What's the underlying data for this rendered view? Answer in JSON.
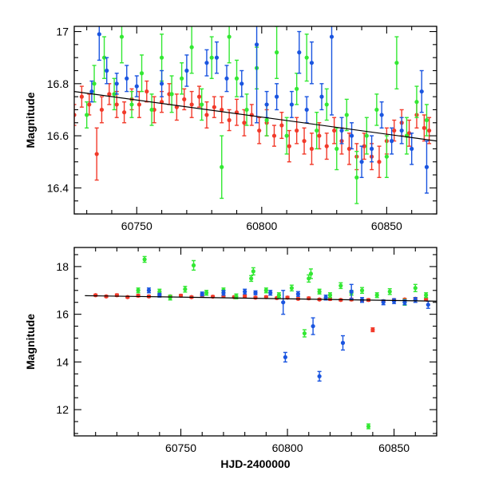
{
  "colors": {
    "red": "#f23a2a",
    "green": "#33e833",
    "blue": "#1a55e0",
    "frame": "#000000",
    "trend": "#000000"
  },
  "chart_data": [
    {
      "type": "scatter",
      "panel": "top",
      "title": "",
      "xlabel": "",
      "ylabel": "Magnitude",
      "xlim": [
        60725,
        60870
      ],
      "ylim": [
        17.02,
        16.3
      ],
      "y_inverted": true,
      "x_ticks": [
        60750,
        60800,
        60850
      ],
      "y_ticks": [
        16.4,
        16.6,
        16.8,
        17
      ],
      "y_tick_labels": [
        "16.4",
        "16.6",
        "16.8",
        "17"
      ],
      "error_bars": true,
      "series": [
        {
          "color_key": "red",
          "points": [
            [
              60725,
              16.68
            ],
            [
              60728,
              16.75
            ],
            [
              60731,
              16.72
            ],
            [
              60734,
              16.53
            ],
            [
              60736,
              16.7
            ],
            [
              60739,
              16.76
            ],
            [
              60742,
              16.72
            ],
            [
              60745,
              16.69
            ],
            [
              60748,
              16.74
            ],
            [
              60751,
              16.72
            ],
            [
              60754,
              16.77
            ],
            [
              60757,
              16.7
            ],
            [
              60760,
              16.73
            ],
            [
              60763,
              16.76
            ],
            [
              60766,
              16.71
            ],
            [
              60769,
              16.74
            ],
            [
              60772,
              16.72
            ],
            [
              60775,
              16.75
            ],
            [
              60778,
              16.68
            ],
            [
              60781,
              16.71
            ],
            [
              60784,
              16.7
            ],
            [
              60787,
              16.66
            ],
            [
              60790,
              16.69
            ],
            [
              60793,
              16.65
            ],
            [
              60796,
              16.68
            ],
            [
              60799,
              16.62
            ],
            [
              60802,
              16.65
            ],
            [
              60805,
              16.6
            ],
            [
              60808,
              16.64
            ],
            [
              60811,
              16.56
            ],
            [
              60814,
              16.62
            ],
            [
              60817,
              16.58
            ],
            [
              60820,
              16.55
            ],
            [
              60823,
              16.6
            ],
            [
              60826,
              16.56
            ],
            [
              60829,
              16.62
            ],
            [
              60832,
              16.58
            ],
            [
              60835,
              16.55
            ],
            [
              60838,
              16.52
            ],
            [
              60841,
              16.56
            ],
            [
              60844,
              16.52
            ],
            [
              60847,
              16.5
            ],
            [
              60850,
              16.58
            ],
            [
              60853,
              16.62
            ],
            [
              60856,
              16.65
            ],
            [
              60859,
              16.61
            ],
            [
              60862,
              16.68
            ],
            [
              60865,
              16.63
            ],
            [
              60867,
              16.62
            ]
          ],
          "errors": [
            0.04,
            0.04,
            0.04,
            0.1,
            0.05,
            0.04,
            0.05,
            0.04,
            0.04,
            0.05,
            0.04,
            0.05,
            0.04,
            0.04,
            0.05,
            0.04,
            0.05,
            0.04,
            0.05,
            0.04,
            0.05,
            0.04,
            0.05,
            0.05,
            0.04,
            0.05,
            0.05,
            0.04,
            0.05,
            0.06,
            0.05,
            0.05,
            0.06,
            0.05,
            0.05,
            0.05,
            0.05,
            0.06,
            0.05,
            0.05,
            0.05,
            0.06,
            0.05,
            0.04,
            0.05,
            0.05,
            0.05,
            0.05,
            0.05
          ]
        },
        {
          "color_key": "green",
          "points": [
            [
              60730,
              16.68
            ],
            [
              60733,
              16.8
            ],
            [
              60737,
              16.9
            ],
            [
              60741,
              16.76
            ],
            [
              60744,
              16.98
            ],
            [
              60748,
              16.72
            ],
            [
              60752,
              16.84
            ],
            [
              60756,
              16.7
            ],
            [
              60760,
              16.9
            ],
            [
              60764,
              16.76
            ],
            [
              60768,
              16.82
            ],
            [
              60772,
              16.94
            ],
            [
              60776,
              16.72
            ],
            [
              60780,
              16.9
            ],
            [
              60784,
              16.48
            ],
            [
              60787,
              16.98
            ],
            [
              60790,
              16.82
            ],
            [
              60794,
              16.7
            ],
            [
              60798,
              16.86
            ],
            [
              60802,
              16.66
            ],
            [
              60806,
              16.92
            ],
            [
              60810,
              16.6
            ],
            [
              60814,
              16.78
            ],
            [
              60818,
              16.9
            ],
            [
              60822,
              16.62
            ],
            [
              60826,
              16.72
            ],
            [
              60830,
              16.55
            ],
            [
              60834,
              16.68
            ],
            [
              60838,
              16.44
            ],
            [
              60842,
              16.6
            ],
            [
              60846,
              16.7
            ],
            [
              60850,
              16.52
            ],
            [
              60854,
              16.88
            ],
            [
              60858,
              16.6
            ],
            [
              60862,
              16.73
            ],
            [
              60866,
              16.66
            ]
          ],
          "errors": [
            0.05,
            0.07,
            0.08,
            0.06,
            0.1,
            0.05,
            0.07,
            0.06,
            0.09,
            0.07,
            0.06,
            0.1,
            0.06,
            0.08,
            0.12,
            0.1,
            0.07,
            0.06,
            0.08,
            0.06,
            0.1,
            0.07,
            0.06,
            0.09,
            0.07,
            0.06,
            0.08,
            0.06,
            0.1,
            0.07,
            0.06,
            0.08,
            0.1,
            0.07,
            0.06,
            0.06
          ]
        },
        {
          "color_key": "blue",
          "points": [
            [
              60732,
              16.77
            ],
            [
              60735,
              16.99
            ],
            [
              60738,
              16.85
            ],
            [
              60742,
              16.8
            ],
            [
              60746,
              16.82
            ],
            [
              60750,
              16.79
            ],
            [
              60760,
              16.8
            ],
            [
              60770,
              16.85
            ],
            [
              60778,
              16.88
            ],
            [
              60782,
              16.9
            ],
            [
              60786,
              16.82
            ],
            [
              60792,
              16.8
            ],
            [
              60798,
              16.95
            ],
            [
              60802,
              16.72
            ],
            [
              60806,
              16.75
            ],
            [
              60812,
              16.72
            ],
            [
              60815,
              16.92
            ],
            [
              60818,
              16.7
            ],
            [
              60820,
              16.88
            ],
            [
              60824,
              16.75
            ],
            [
              60828,
              16.98
            ],
            [
              60832,
              16.62
            ],
            [
              60836,
              16.6
            ],
            [
              60840,
              16.5
            ],
            [
              60844,
              16.55
            ],
            [
              60848,
              16.68
            ],
            [
              60852,
              16.58
            ],
            [
              60856,
              16.62
            ],
            [
              60860,
              16.55
            ],
            [
              60864,
              16.77
            ],
            [
              60866,
              16.48
            ]
          ],
          "errors": [
            0.04,
            0.1,
            0.05,
            0.04,
            0.05,
            0.04,
            0.05,
            0.06,
            0.05,
            0.06,
            0.05,
            0.05,
            0.3,
            0.05,
            0.05,
            0.05,
            0.08,
            0.05,
            0.08,
            0.05,
            0.3,
            0.05,
            0.05,
            0.06,
            0.05,
            0.05,
            0.05,
            0.05,
            0.06,
            0.08,
            0.1
          ]
        }
      ],
      "trend_line": {
        "x": [
          60725,
          60870
        ],
        "y": [
          16.77,
          16.58
        ]
      }
    },
    {
      "type": "scatter",
      "panel": "bottom",
      "title": "",
      "xlabel": "HJD-2400000",
      "ylabel": "Magnitude",
      "xlim": [
        60700,
        60870
      ],
      "ylim": [
        18.8,
        10.9
      ],
      "y_inverted": true,
      "x_ticks": [
        60750,
        60800,
        60850
      ],
      "y_ticks": [
        12,
        14,
        16,
        18
      ],
      "y_tick_labels": [
        "12",
        "14",
        "16",
        "18"
      ],
      "error_bars": true,
      "series": [
        {
          "color_key": "red",
          "points": [
            [
              60710,
              16.8
            ],
            [
              60715,
              16.75
            ],
            [
              60720,
              16.8
            ],
            [
              60725,
              16.72
            ],
            [
              60730,
              16.78
            ],
            [
              60735,
              16.75
            ],
            [
              60740,
              16.8
            ],
            [
              60745,
              16.75
            ],
            [
              60750,
              16.78
            ],
            [
              60755,
              16.72
            ],
            [
              60760,
              16.8
            ],
            [
              60765,
              16.74
            ],
            [
              60770,
              16.76
            ],
            [
              60775,
              16.72
            ],
            [
              60780,
              16.75
            ],
            [
              60785,
              16.7
            ],
            [
              60790,
              16.72
            ],
            [
              60795,
              16.68
            ],
            [
              60800,
              16.7
            ],
            [
              60805,
              16.65
            ],
            [
              60810,
              16.67
            ],
            [
              60815,
              16.62
            ],
            [
              60820,
              16.64
            ],
            [
              60825,
              16.6
            ],
            [
              60830,
              16.62
            ],
            [
              60835,
              16.58
            ],
            [
              60838,
              16.6
            ],
            [
              60840,
              15.35
            ],
            [
              60845,
              16.55
            ],
            [
              60850,
              16.6
            ],
            [
              60855,
              16.62
            ],
            [
              60860,
              16.65
            ],
            [
              60865,
              16.63
            ]
          ],
          "errors": [
            0.04,
            0.04,
            0.05,
            0.04,
            0.05,
            0.04,
            0.05,
            0.04,
            0.05,
            0.04,
            0.05,
            0.04,
            0.05,
            0.04,
            0.05,
            0.04,
            0.05,
            0.04,
            0.05,
            0.04,
            0.05,
            0.04,
            0.05,
            0.04,
            0.05,
            0.04,
            0.05,
            0.08,
            0.04,
            0.05,
            0.04,
            0.05,
            0.04
          ]
        },
        {
          "color_key": "green",
          "points": [
            [
              60730,
              17.0
            ],
            [
              60733,
              18.3
            ],
            [
              60740,
              16.95
            ],
            [
              60745,
              16.7
            ],
            [
              60752,
              17.05
            ],
            [
              60756,
              18.05
            ],
            [
              60762,
              16.9
            ],
            [
              60770,
              17.0
            ],
            [
              60776,
              16.75
            ],
            [
              60783,
              17.5
            ],
            [
              60784,
              17.8
            ],
            [
              60790,
              17.0
            ],
            [
              60796,
              16.8
            ],
            [
              60802,
              17.1
            ],
            [
              60808,
              15.2
            ],
            [
              60810,
              17.5
            ],
            [
              60811,
              17.7
            ],
            [
              60815,
              16.95
            ],
            [
              60820,
              16.8
            ],
            [
              60825,
              17.2
            ],
            [
              60830,
              16.9
            ],
            [
              60835,
              17.0
            ],
            [
              60838,
              11.3
            ],
            [
              60842,
              16.8
            ],
            [
              60848,
              16.95
            ],
            [
              60855,
              16.5
            ],
            [
              60860,
              17.1
            ],
            [
              60865,
              16.8
            ]
          ],
          "errors": [
            0.1,
            0.12,
            0.1,
            0.1,
            0.12,
            0.2,
            0.1,
            0.1,
            0.1,
            0.12,
            0.15,
            0.1,
            0.1,
            0.12,
            0.15,
            0.15,
            0.2,
            0.1,
            0.1,
            0.12,
            0.1,
            0.12,
            0.1,
            0.1,
            0.12,
            0.12,
            0.15,
            0.1
          ]
        },
        {
          "color_key": "blue",
          "points": [
            [
              60735,
              17.0
            ],
            [
              60740,
              16.8
            ],
            [
              60760,
              16.85
            ],
            [
              60770,
              16.9
            ],
            [
              60780,
              16.95
            ],
            [
              60785,
              16.9
            ],
            [
              60792,
              16.9
            ],
            [
              60798,
              16.5
            ],
            [
              60799,
              14.2
            ],
            [
              60805,
              16.85
            ],
            [
              60812,
              15.5
            ],
            [
              60815,
              13.4
            ],
            [
              60818,
              16.7
            ],
            [
              60826,
              14.8
            ],
            [
              60830,
              16.95
            ],
            [
              60835,
              16.6
            ],
            [
              60845,
              16.5
            ],
            [
              60850,
              16.55
            ],
            [
              60855,
              16.5
            ],
            [
              60860,
              16.6
            ],
            [
              60866,
              16.4
            ]
          ],
          "errors": [
            0.1,
            0.08,
            0.08,
            0.1,
            0.1,
            0.08,
            0.1,
            0.5,
            0.2,
            0.1,
            0.35,
            0.2,
            0.1,
            0.3,
            0.3,
            0.1,
            0.1,
            0.1,
            0.1,
            0.1,
            0.15
          ]
        }
      ],
      "trend_line": {
        "x": [
          60705,
          60870
        ],
        "y": [
          16.78,
          16.55
        ]
      }
    }
  ]
}
